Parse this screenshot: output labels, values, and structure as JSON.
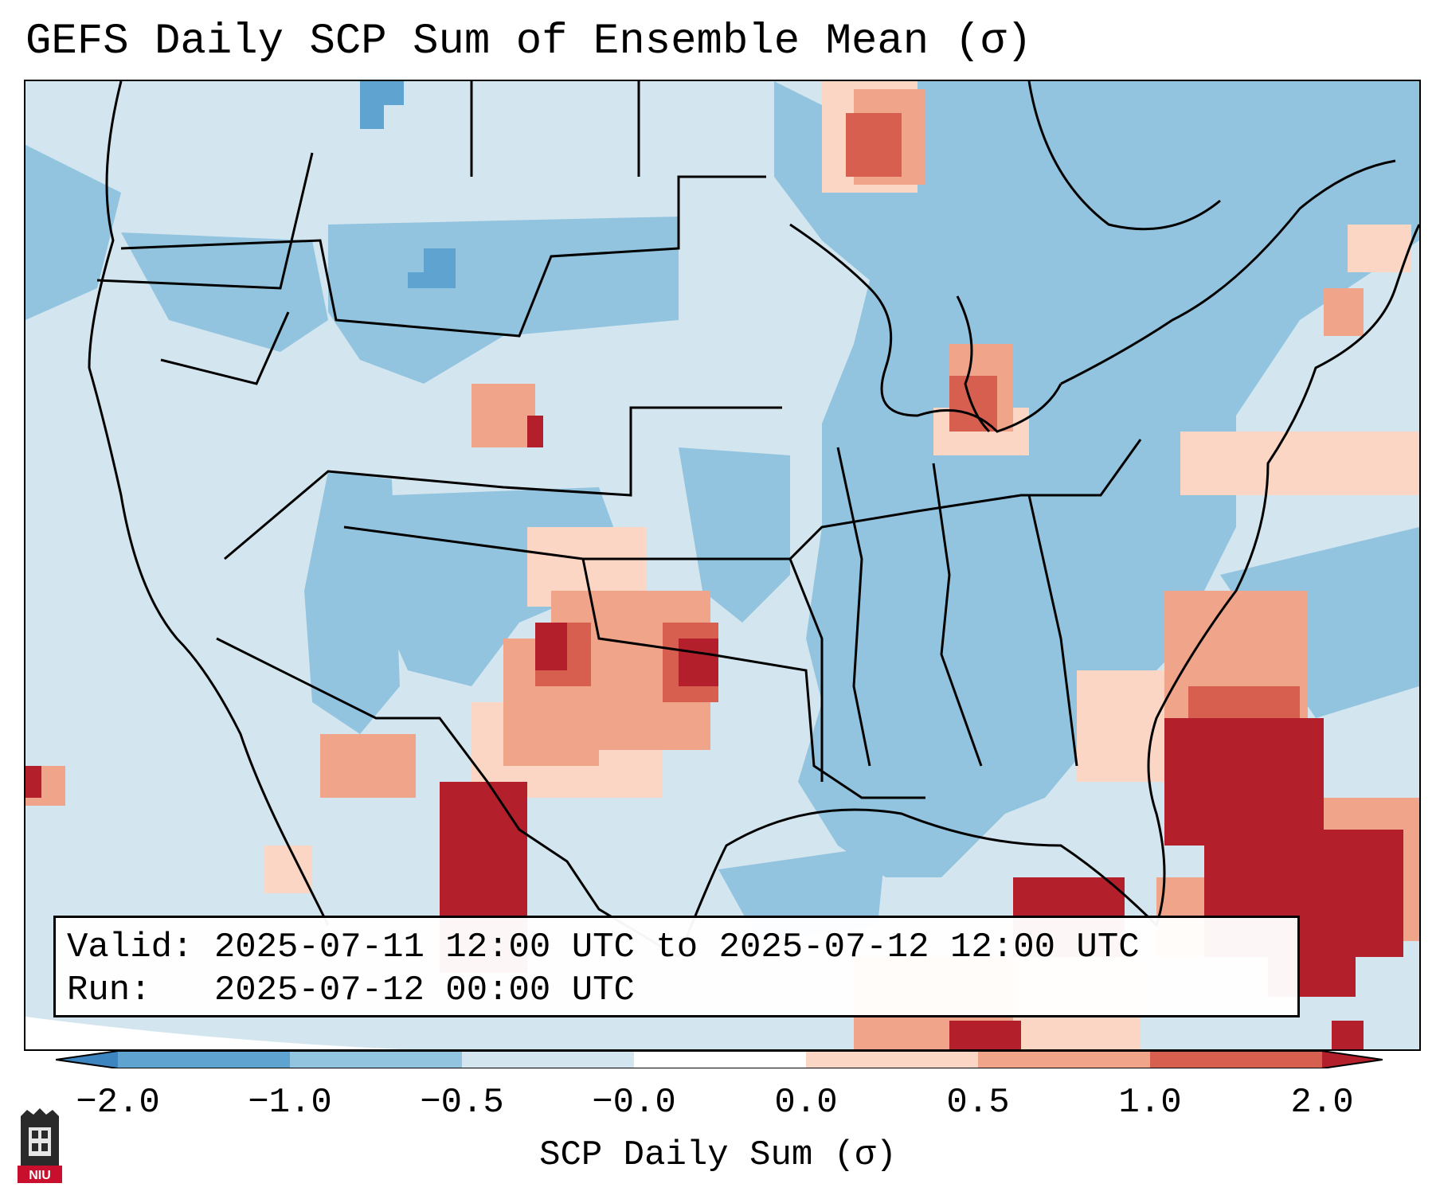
{
  "title": "GEFS Daily SCP Sum of Ensemble Mean (σ)",
  "info": {
    "valid_label": "Valid:",
    "valid_value": "2025-07-11 12:00 UTC to 2025-07-12 12:00 UTC",
    "run_label": "Run:",
    "run_value": "2025-07-12 00:00 UTC"
  },
  "colorbar": {
    "label": "SCP Daily Sum (σ)",
    "ticks": [
      "−2.0",
      "−1.0",
      "−0.5",
      "−0.0",
      "0.0",
      "0.5",
      "1.0",
      "2.0"
    ],
    "colors": [
      "#3d85c0",
      "#5fa3d0",
      "#93c4df",
      "#d3e6f0",
      "#fbd6c4",
      "#f0a58a",
      "#d65f50",
      "#b3202b"
    ]
  },
  "logo": {
    "text": "NIU",
    "color": "#c8102e"
  },
  "colors": {
    "background": "#d6e7f1",
    "ocean_mask": "#ffffff",
    "coast": "#000000"
  }
}
